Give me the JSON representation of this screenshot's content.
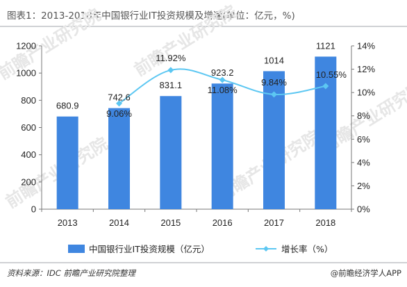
{
  "title": "图表1：2013-2018年中国银行业IT投资规模及增速(单位：亿元，%)",
  "source": "资料来源：IDC 前瞻产业研究院整理",
  "brand": "@前瞻经济学人APP",
  "watermark": "前瞻产业研究院",
  "colors": {
    "bar": "#3f86e0",
    "line": "#5cc7f2",
    "divider": "#9fa3a8",
    "axis": "#777777"
  },
  "chart_data": {
    "type": "bar",
    "categories": [
      "2013",
      "2014",
      "2015",
      "2016",
      "2017",
      "2018"
    ],
    "series": [
      {
        "name": "中国银行业IT投资规模（亿元）",
        "type": "bar",
        "axis": "left",
        "values": [
          680.9,
          742.6,
          831.1,
          923.2,
          1014,
          1121
        ],
        "labels": [
          "680.9",
          "742.6",
          "831.1",
          "923.2",
          "1014",
          "1121"
        ]
      },
      {
        "name": "增长率（%）",
        "type": "line",
        "axis": "right",
        "values": [
          null,
          9.06,
          11.92,
          11.08,
          9.84,
          10.55
        ],
        "labels": [
          "",
          "9.06%",
          "11.92%",
          "11.08%",
          "9.84%",
          "10.55%"
        ]
      }
    ],
    "y_left": {
      "min": 0,
      "max": 1200,
      "ticks": [
        "0",
        "200",
        "400",
        "600",
        "800",
        "1000",
        "1200"
      ]
    },
    "y_right": {
      "min": 0,
      "max": 14,
      "ticks": [
        "0%",
        "2%",
        "4%",
        "6%",
        "8%",
        "10%",
        "12%",
        "14%"
      ]
    },
    "grid": false,
    "legend": "bottom"
  }
}
